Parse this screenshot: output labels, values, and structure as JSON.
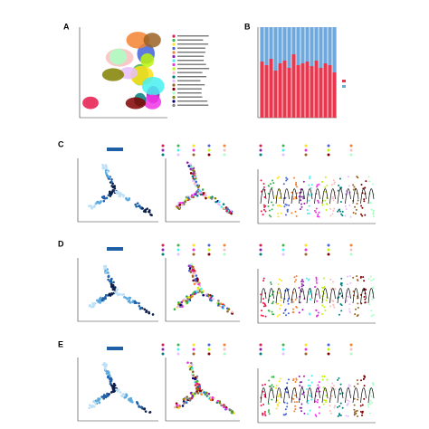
{
  "panel_labels": [
    "A",
    "B",
    "C",
    "D",
    "E"
  ],
  "chart_data": {
    "type": "bar",
    "stacked": true,
    "categories": [
      null,
      null,
      null,
      null,
      null,
      null,
      null,
      null,
      null,
      null,
      null,
      null,
      null,
      null,
      null,
      null,
      null
    ],
    "series": [
      {
        "color": "#e8384f",
        "values": [
          62,
          58,
          65,
          52,
          60,
          63,
          55,
          70,
          58,
          60,
          62,
          57,
          63,
          55,
          60,
          58,
          50
        ]
      },
      {
        "color": "#6fa8dc",
        "values": [
          38,
          42,
          35,
          48,
          40,
          37,
          45,
          30,
          42,
          40,
          38,
          43,
          37,
          45,
          40,
          42,
          50
        ]
      }
    ],
    "ylim": [
      0,
      100
    ]
  }
}
